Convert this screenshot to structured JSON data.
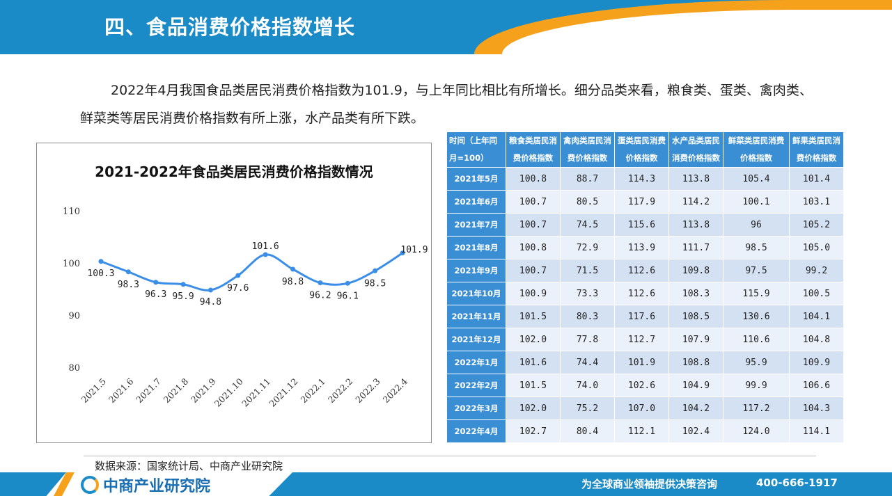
{
  "header": {
    "title": "四、食品消费价格指数增长"
  },
  "intro": {
    "paragraph": "2022年4月我国食品类居民消费价格指数为101.9，与上年同比相比有所增长。细分品类来看，粮食类、蛋类、禽肉类、鲜菜类等居民消费价格指数有所上涨，水产品类有所下跌。"
  },
  "chart_data": {
    "type": "line",
    "title": "2021-2022年食品类居民消费价格指数情况",
    "categories": [
      "2021.5",
      "2021.6",
      "2021.7",
      "2021.8",
      "2021.9",
      "2021.10",
      "2021.11",
      "2021.12",
      "2022.1",
      "2022.2",
      "2022.3",
      "2022.4"
    ],
    "values": [
      100.3,
      98.3,
      96.3,
      95.9,
      94.8,
      97.6,
      101.6,
      98.8,
      96.2,
      96.1,
      98.5,
      101.9
    ],
    "value_labels": [
      "100.3",
      "98.3",
      "96.3",
      "95.9",
      "94.8",
      "97.6",
      "101.6",
      "98.8",
      "96.2",
      "96.1",
      "98.5",
      "101.9"
    ],
    "ylim": [
      80,
      110
    ],
    "yticks": [
      "80",
      "90",
      "100",
      "110"
    ],
    "xlabel": "",
    "ylabel": "",
    "grid": false,
    "line_color": "#3a8ee6"
  },
  "table": {
    "headers": [
      "时间（上年同月=100）",
      "粮食类居民消费价格指数",
      "禽肉类居民消费价格指数",
      "蛋类居民消费价格指数",
      "水产品类居民消费价格指数",
      "鲜菜类居民消费价格指数",
      "鲜果类居民消费价格指数"
    ],
    "rows": [
      [
        "2021年5月",
        "100.8",
        "88.7",
        "114.3",
        "113.8",
        "105.4",
        "101.4"
      ],
      [
        "2021年6月",
        "100.7",
        "80.5",
        "117.9",
        "114.2",
        "100.1",
        "103.1"
      ],
      [
        "2021年7月",
        "100.7",
        "74.5",
        "115.6",
        "113.8",
        "96",
        "105.2"
      ],
      [
        "2021年8月",
        "100.8",
        "72.9",
        "113.9",
        "111.7",
        "98.5",
        "105.0"
      ],
      [
        "2021年9月",
        "100.7",
        "71.5",
        "112.6",
        "109.8",
        "97.5",
        "99.2"
      ],
      [
        "2021年10月",
        "100.9",
        "73.3",
        "112.6",
        "108.3",
        "115.9",
        "100.5"
      ],
      [
        "2021年11月",
        "101.5",
        "80.3",
        "117.6",
        "108.5",
        "130.6",
        "104.1"
      ],
      [
        "2021年12月",
        "102.0",
        "77.8",
        "112.7",
        "107.9",
        "110.6",
        "104.8"
      ],
      [
        "2022年1月",
        "101.6",
        "74.4",
        "101.9",
        "108.8",
        "95.9",
        "109.9"
      ],
      [
        "2022年2月",
        "101.5",
        "74.0",
        "102.6",
        "104.9",
        "99.9",
        "106.6"
      ],
      [
        "2022年3月",
        "102.0",
        "75.2",
        "107.0",
        "104.2",
        "117.2",
        "104.3"
      ],
      [
        "2022年4月",
        "102.7",
        "80.4",
        "112.1",
        "102.4",
        "124.0",
        "114.1"
      ]
    ]
  },
  "source": "数据来源：国家统计局、中商产业研究院",
  "footer": {
    "logo_text": "中商产业研究院",
    "slogan": "为全球商业领袖提供决策咨询",
    "phone": "400-666-1917"
  },
  "colors": {
    "primary_blue": "#1a8bc7",
    "accent_orange": "#f5a11c",
    "table_header": "#3a8fd4"
  }
}
